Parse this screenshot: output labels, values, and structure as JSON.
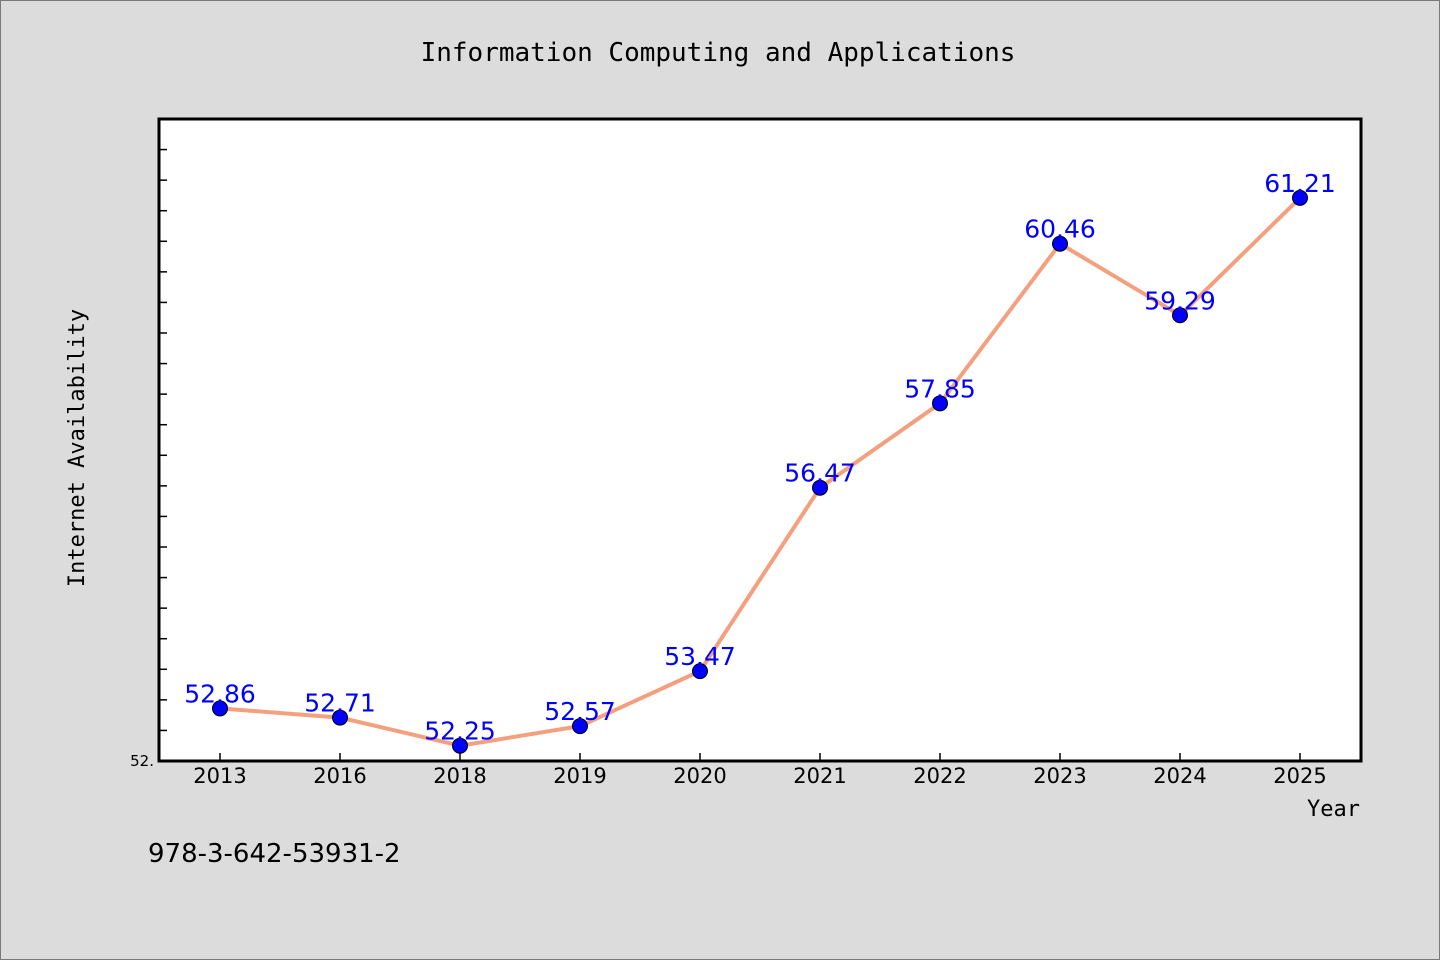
{
  "page": {
    "footer": "978-3-642-53931-2"
  },
  "chart_data": {
    "type": "line",
    "title": "Information Computing and Applications",
    "xlabel": "Year",
    "ylabel": "Internet Availability",
    "categories": [
      "2013",
      "2016",
      "2018",
      "2019",
      "2020",
      "2021",
      "2022",
      "2023",
      "2024",
      "2025"
    ],
    "values": [
      52.86,
      52.71,
      52.25,
      52.57,
      53.47,
      56.47,
      57.85,
      60.46,
      59.29,
      61.21
    ],
    "data_labels": [
      "52.86",
      "52.71",
      "52.25",
      "52.57",
      "53.47",
      "56.47",
      "57.85",
      "60.46",
      "59.29",
      "61.21"
    ],
    "ytick_label": "52.",
    "ylim": [
      52.0,
      62.5
    ],
    "grid": false,
    "line_color": "#f4a07e",
    "marker_color": "#0000ff",
    "background_color": "#dcdcdc",
    "plot_background": "#ffffff"
  }
}
